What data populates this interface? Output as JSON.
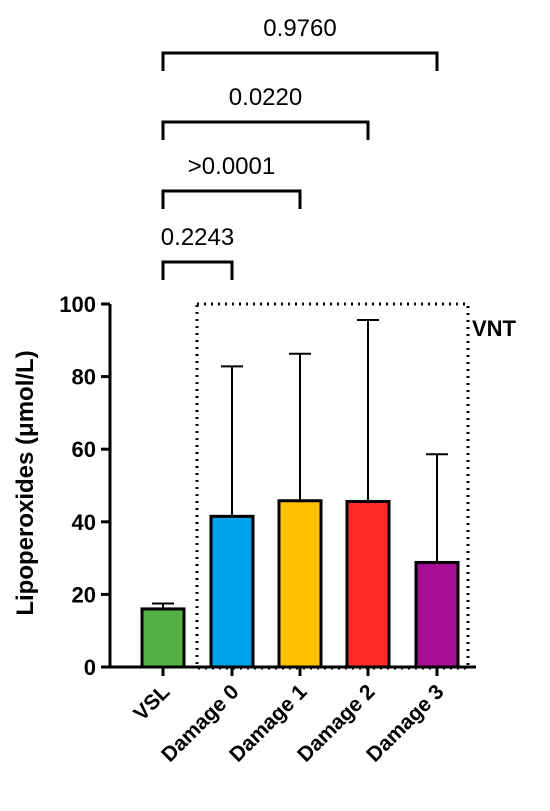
{
  "chart_data": {
    "type": "bar",
    "title": "",
    "xlabel": "",
    "ylabel": "Lipoperoxides (μmol/L)",
    "ylim": [
      0,
      100
    ],
    "yticks": [
      0,
      20,
      40,
      60,
      80,
      100
    ],
    "categories": [
      "VSL",
      "Damage 0",
      "Damage 1",
      "Damage 2",
      "Damage 3"
    ],
    "values": [
      16,
      41.5,
      45.8,
      45.6,
      28.8
    ],
    "error_upper": [
      17.5,
      82.8,
      86.3,
      95.6,
      58.6
    ],
    "colors": [
      "#54b044",
      "#00a2ec",
      "#ffc000",
      "#ff2a2a",
      "#a60e96"
    ],
    "region": {
      "label": "VNT",
      "categories": [
        "Damage 0",
        "Damage 1",
        "Damage 2",
        "Damage 3"
      ]
    },
    "comparisons": [
      {
        "from": "VSL",
        "to": "Damage 0",
        "p": "0.2243"
      },
      {
        "from": "VSL",
        "to": "Damage 1",
        "p": ">0.0001"
      },
      {
        "from": "VSL",
        "to": "Damage 2",
        "p": "0.0220"
      },
      {
        "from": "VSL",
        "to": "Damage 3",
        "p": "0.9760"
      }
    ]
  }
}
